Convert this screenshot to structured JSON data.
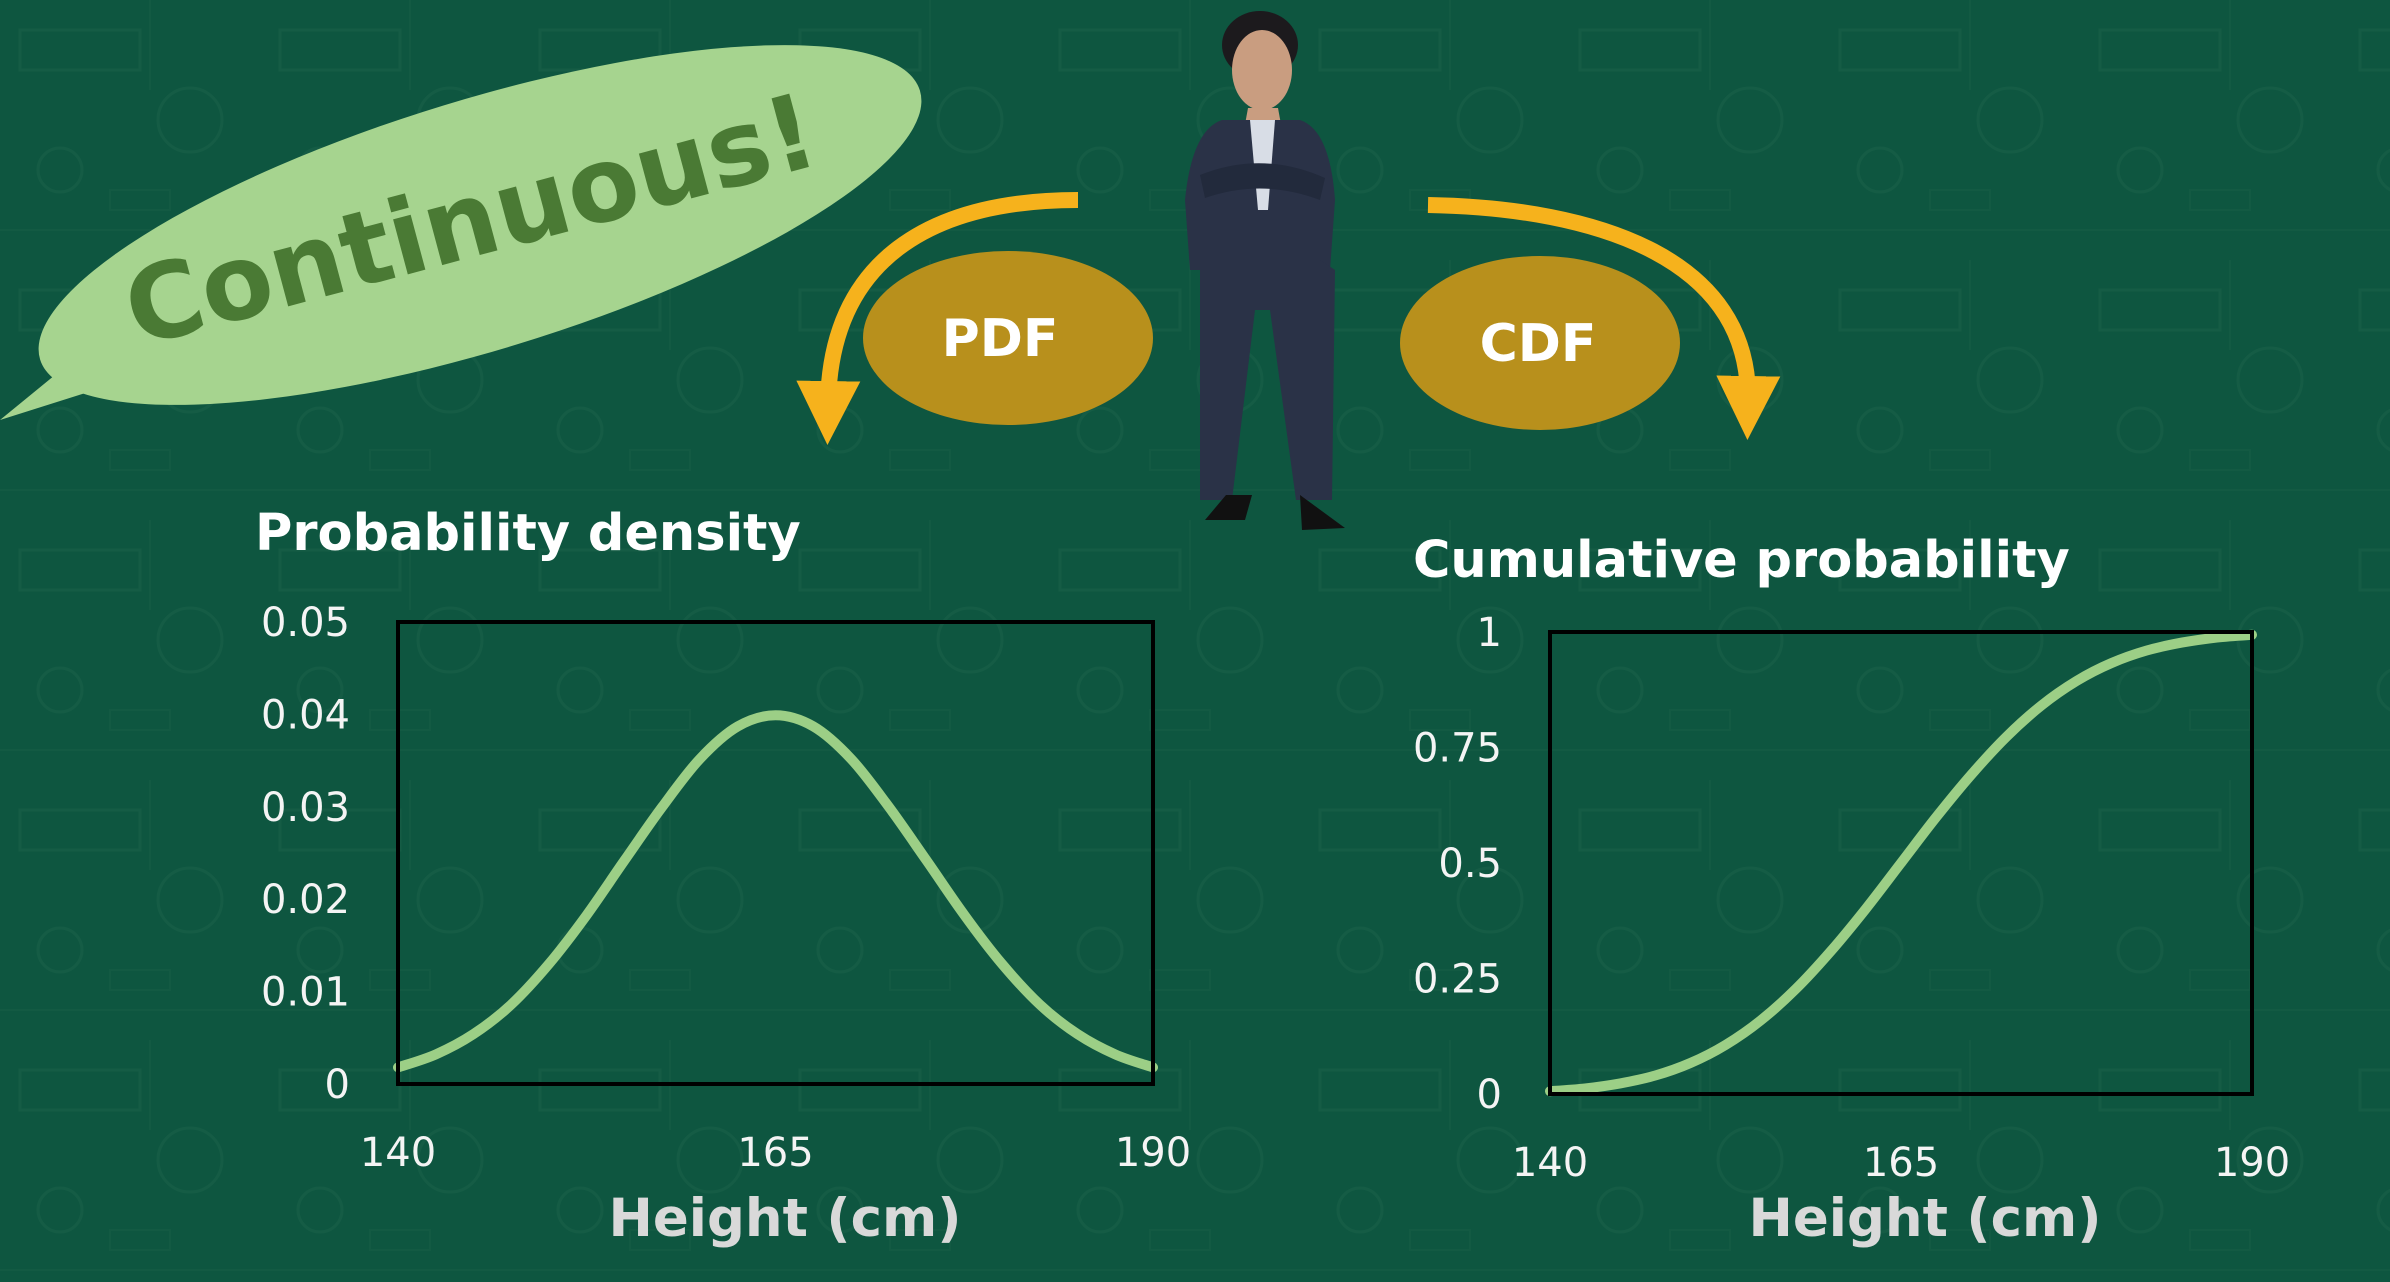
{
  "callout": {
    "text": "Continuous!"
  },
  "badges": {
    "pdf": "PDF",
    "cdf": "CDF"
  },
  "colors": {
    "background": "#0e5640",
    "curve": "#9ccf86",
    "callout": "#a6d48f",
    "callout_text": "#4a7a34",
    "arrow": "#f6b21c",
    "oval": "#b8901c"
  },
  "chart_data": [
    {
      "type": "line",
      "title": "Probability density",
      "xlabel": "Height (cm)",
      "ylabel": "",
      "xlim": [
        140,
        190
      ],
      "ylim": [
        0,
        0.05
      ],
      "xticks": [
        "140",
        "165",
        "190"
      ],
      "yticks": [
        "0",
        "0.01",
        "0.02",
        "0.03",
        "0.04",
        "0.05"
      ],
      "grid": false,
      "series": [
        {
          "x": [
            140,
            142.5,
            145,
            147.5,
            150,
            152.5,
            155,
            157.5,
            160,
            162.5,
            165,
            167.5,
            170,
            172.5,
            175,
            177.5,
            180,
            182.5,
            185,
            187.5,
            190
          ],
          "y": [
            0.0018,
            0.0032,
            0.0054,
            0.0086,
            0.013,
            0.0183,
            0.0242,
            0.03,
            0.0352,
            0.0387,
            0.0399,
            0.0387,
            0.0352,
            0.03,
            0.0242,
            0.0183,
            0.013,
            0.0086,
            0.0054,
            0.0032,
            0.0018
          ]
        }
      ]
    },
    {
      "type": "line",
      "title": "Cumulative probability",
      "xlabel": "Height (cm)",
      "ylabel": "",
      "xlim": [
        140,
        190
      ],
      "ylim": [
        0,
        1
      ],
      "xticks": [
        "140",
        "165",
        "190"
      ],
      "yticks": [
        "0",
        "0.25",
        "0.5",
        "0.75",
        "1"
      ],
      "grid": false,
      "series": [
        {
          "x": [
            140,
            142.5,
            145,
            147.5,
            150,
            152.5,
            155,
            157.5,
            160,
            162.5,
            165,
            167.5,
            170,
            172.5,
            175,
            177.5,
            180,
            182.5,
            185,
            187.5,
            190
          ],
          "y": [
            0.006,
            0.012,
            0.023,
            0.04,
            0.067,
            0.106,
            0.159,
            0.227,
            0.309,
            0.401,
            0.5,
            0.599,
            0.691,
            0.773,
            0.841,
            0.894,
            0.933,
            0.96,
            0.977,
            0.988,
            0.994
          ]
        }
      ]
    }
  ]
}
